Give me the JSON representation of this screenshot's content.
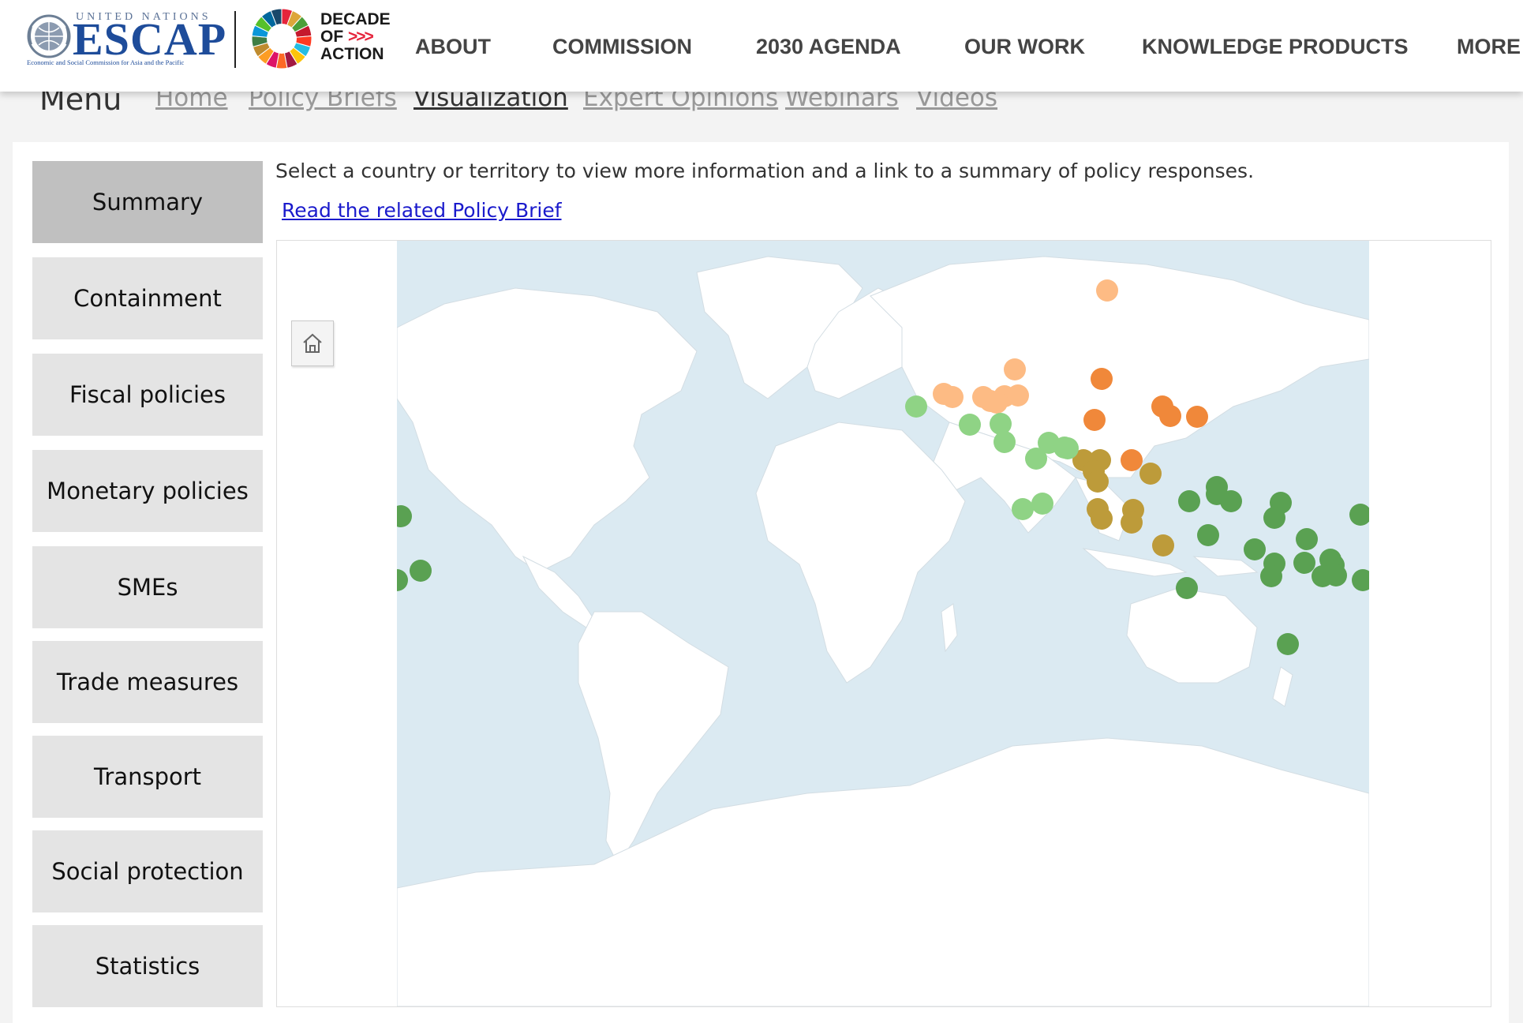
{
  "header": {
    "org_top": "UNITED NATIONS",
    "org_name": "ESCAP",
    "org_full": "Economic and Social Commission for Asia and the Pacific",
    "decade_line1": "DECADE",
    "decade_line2": "OF",
    "decade_chevrons": ">>>",
    "decade_line3": "ACTION",
    "nav": [
      "ABOUT",
      "COMMISSION",
      "2030 AGENDA",
      "OUR WORK",
      "KNOWLEDGE PRODUCTS",
      "MORE"
    ]
  },
  "submenu": {
    "title": "Menu",
    "links": [
      "Home",
      "Policy Briefs",
      "Visualization",
      "Expert Opinions",
      "Webinars",
      "Videos"
    ],
    "active": "Visualization"
  },
  "sidebar": {
    "items": [
      "Summary",
      "Containment",
      "Fiscal policies",
      "Monetary policies",
      "SMEs",
      "Trade measures",
      "Transport",
      "Social protection",
      "Statistics"
    ],
    "active": "Summary"
  },
  "content": {
    "instruction": "Select a country or territory to view more information and a link to a summary of policy responses.",
    "policy_link": "Read the related Policy Brief"
  },
  "map": {
    "home_button_icon": "home-icon",
    "colors": {
      "ocean": "#dbeaf2",
      "land": "#ffffff",
      "north_central_asia": "#fdbb84",
      "east_northeast_asia": "#f0883a",
      "southeast_asia": "#bd9b3a",
      "south_southwest_asia": "#8fd385",
      "pacific": "#5aa152"
    }
  }
}
